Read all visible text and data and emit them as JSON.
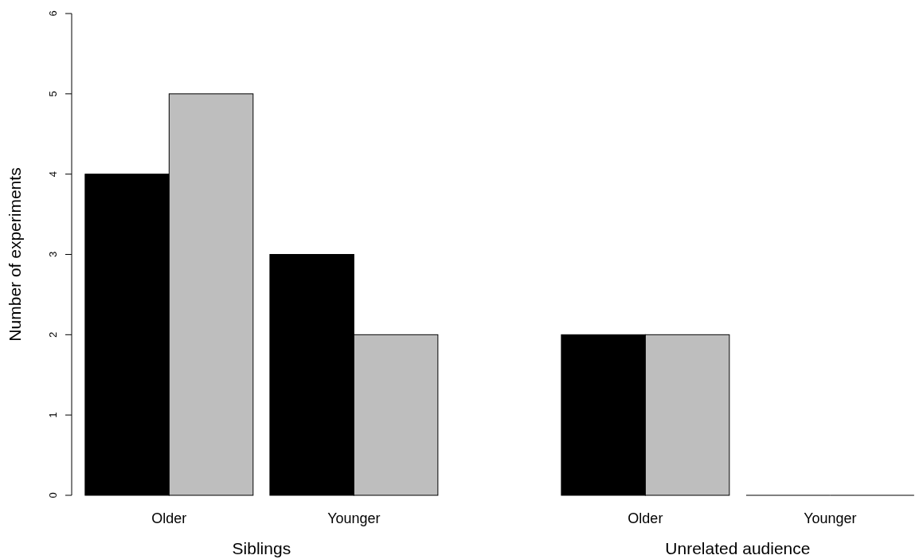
{
  "chart_data": {
    "type": "bar",
    "ylabel": "Number of experiments",
    "categories": [
      "Older",
      "Younger",
      "Older",
      "Younger"
    ],
    "series": [
      {
        "color": "#000000",
        "values": [
          4,
          3,
          2,
          0
        ]
      },
      {
        "color": "#bebebe",
        "values": [
          5,
          2,
          2,
          0
        ]
      }
    ],
    "ylim": [
      0,
      6
    ],
    "yticks": [
      0,
      1,
      2,
      3,
      4,
      5,
      6
    ],
    "grid": false,
    "annotations": [
      "Siblings",
      "Unrelated audience"
    ]
  }
}
